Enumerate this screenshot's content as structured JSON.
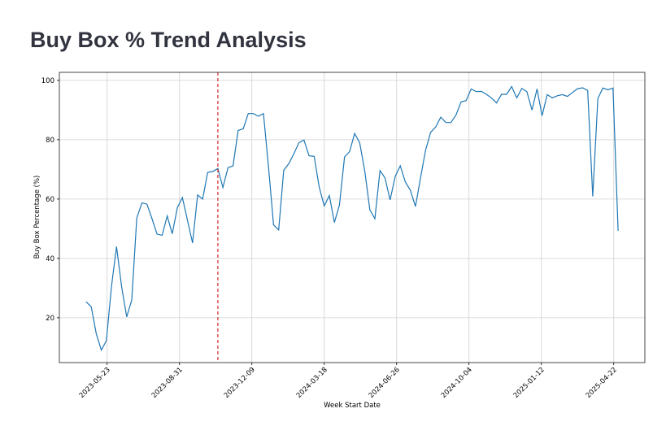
{
  "page": {
    "title": "Buy Box % Trend Analysis"
  },
  "chart_data": {
    "type": "line",
    "title": "",
    "xlabel": "Week Start Date",
    "ylabel": "Buy Box Percentage (%)",
    "x_start": "2023-04-24",
    "x_step_days": 7,
    "xlim": [
      "2023-03-18",
      "2025-06-04"
    ],
    "ylim": [
      4.9,
      102.7
    ],
    "grid": true,
    "x_ticks": [
      "2023-05-23",
      "2023-08-31",
      "2023-12-09",
      "2024-03-18",
      "2024-06-26",
      "2024-10-04",
      "2025-01-12",
      "2025-04-22"
    ],
    "y_ticks": [
      20,
      40,
      60,
      80,
      100
    ],
    "line_color": "#1f77b4",
    "vline": {
      "date": "2023-10-23",
      "color": "#d62728",
      "style": "dashed"
    },
    "series": [
      {
        "name": "Buy Box %",
        "values": [
          25.4,
          23.7,
          14.6,
          9.1,
          12.3,
          30.6,
          44.0,
          30.6,
          20.3,
          26.0,
          53.6,
          58.7,
          58.3,
          53.4,
          48.2,
          47.8,
          54.3,
          48.3,
          57.1,
          60.5,
          52.9,
          45.2,
          61.4,
          60.0,
          69.0,
          69.3,
          70.3,
          63.9,
          70.6,
          71.2,
          83.1,
          83.7,
          88.8,
          88.8,
          87.9,
          88.8,
          70.8,
          51.3,
          49.6,
          69.7,
          71.9,
          75.3,
          79.0,
          79.9,
          74.6,
          74.4,
          64.1,
          57.7,
          61.2,
          52.1,
          58.0,
          74.2,
          76.0,
          82.1,
          79.0,
          69.4,
          56.4,
          53.4,
          69.6,
          67.1,
          59.7,
          67.6,
          71.2,
          65.8,
          63.0,
          57.5,
          67.1,
          76.4,
          82.5,
          84.3,
          87.6,
          85.8,
          85.8,
          88.3,
          92.7,
          93.2,
          97.1,
          96.2,
          96.3,
          95.3,
          94.1,
          92.4,
          95.3,
          95.3,
          97.9,
          94.1,
          97.3,
          96.2,
          90.0,
          97.1,
          88.1,
          95.2,
          94.1,
          94.8,
          95.2,
          94.6,
          95.9,
          97.2,
          97.5,
          96.6,
          60.9,
          93.9,
          97.4,
          96.8,
          97.4,
          49.3
        ]
      }
    ]
  }
}
